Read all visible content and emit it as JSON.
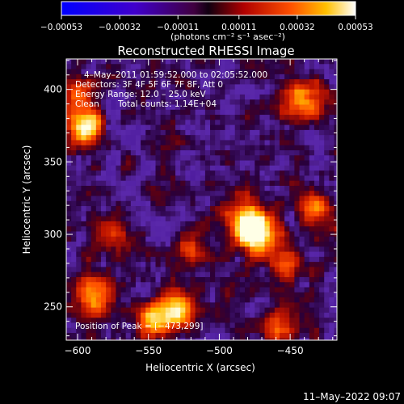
{
  "chart_data": {
    "type": "heatmap",
    "title": "Reconstructed RHESSI Image",
    "xlabel": "Heliocentric X (arcsec)",
    "ylabel": "Heliocentric Y (arcsec)",
    "xlim": [
      -608,
      -417
    ],
    "ylim": [
      227,
      421
    ],
    "x_ticks": [
      -600,
      -550,
      -500,
      -450
    ],
    "y_ticks": [
      250,
      300,
      350,
      400
    ],
    "x_tick_labels": [
      "−600",
      "−550",
      "−500",
      "−450"
    ],
    "y_tick_labels": [
      "250",
      "300",
      "350",
      "400"
    ],
    "colorbar": {
      "min": -0.00053,
      "max": 0.00053,
      "tick_values": [
        -0.00053,
        -0.00032,
        -0.00011,
        0.00011,
        0.00032,
        0.00053
      ],
      "tick_labels": [
        "−0.00053",
        "−0.00032",
        "−0.00011",
        "0.00011",
        "0.00032",
        "0.00053"
      ],
      "unit_label": "(photons cm⁻² s⁻¹ asec⁻²)"
    },
    "annotations": [
      "4–May–2011 01:59:52.000 to 02:05:52.000",
      "Detectors: 3F 4F 5F 6F 7F 8F, Att 0",
      "Energy Range: 12.0 – 25.0 keV",
      "Clean",
      "Total counts: 1.14E+04"
    ],
    "peak_label": "Position of Peak = [−473,299]",
    "peak": [
      -473,
      299
    ],
    "sources": [
      {
        "x": -475,
        "y": 300,
        "amp": 1.0,
        "sigma": 9
      },
      {
        "x": -483,
        "y": 314,
        "amp": 0.45,
        "sigma": 10
      },
      {
        "x": -531,
        "y": 247,
        "amp": 0.75,
        "sigma": 9
      },
      {
        "x": -547,
        "y": 240,
        "amp": 0.5,
        "sigma": 8
      },
      {
        "x": -594,
        "y": 373,
        "amp": 0.8,
        "sigma": 8
      },
      {
        "x": -598,
        "y": 395,
        "amp": 0.45,
        "sigma": 8
      },
      {
        "x": -432,
        "y": 318,
        "amp": 0.45,
        "sigma": 9
      },
      {
        "x": -440,
        "y": 392,
        "amp": 0.55,
        "sigma": 10
      },
      {
        "x": -458,
        "y": 235,
        "amp": 0.45,
        "sigma": 9
      },
      {
        "x": -588,
        "y": 258,
        "amp": 0.45,
        "sigma": 10
      },
      {
        "x": -575,
        "y": 300,
        "amp": 0.35,
        "sigma": 9
      },
      {
        "x": -520,
        "y": 290,
        "amp": 0.35,
        "sigma": 8
      },
      {
        "x": -455,
        "y": 282,
        "amp": 0.4,
        "sigma": 8
      }
    ]
  },
  "footer": {
    "timestamp": "11–May–2022 09:07"
  }
}
